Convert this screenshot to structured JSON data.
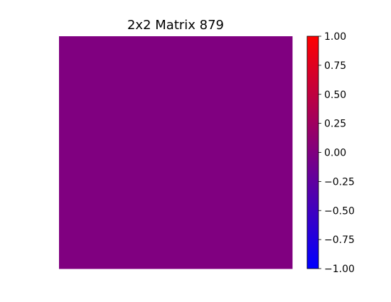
{
  "chart_data": {
    "type": "heatmap",
    "title": "2x2 Matrix 879",
    "rows": 2,
    "cols": 2,
    "values": [
      [
        0,
        0
      ],
      [
        0,
        0
      ]
    ],
    "colormap": {
      "min": -1.0,
      "max": 1.0,
      "min_color": "#0000ff",
      "mid_color": "#800080",
      "max_color": "#ff0000"
    },
    "colorbar_ticks": [
      "1.00",
      "0.75",
      "0.50",
      "0.25",
      "0.00",
      "−0.25",
      "−0.50",
      "−0.75",
      "−1.00"
    ],
    "colorbar_tick_values": [
      1.0,
      0.75,
      0.5,
      0.25,
      0.0,
      -0.25,
      -0.5,
      -0.75,
      -1.0
    ]
  }
}
